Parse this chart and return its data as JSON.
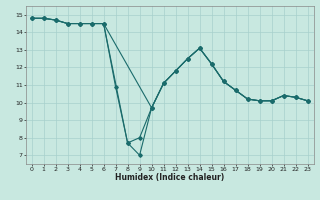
{
  "title": "",
  "xlabel": "Humidex (Indice chaleur)",
  "bg_color": "#c8e8e0",
  "line_color": "#1a6b6b",
  "grid_color": "#a8d0cc",
  "xlim": [
    -0.5,
    23.5
  ],
  "ylim": [
    6.5,
    15.5
  ],
  "xticks": [
    0,
    1,
    2,
    3,
    4,
    5,
    6,
    7,
    8,
    9,
    10,
    11,
    12,
    13,
    14,
    15,
    16,
    17,
    18,
    19,
    20,
    21,
    22,
    23
  ],
  "yticks": [
    7,
    8,
    9,
    10,
    11,
    12,
    13,
    14,
    15
  ],
  "line1": {
    "x": [
      0,
      1,
      2,
      3,
      4,
      5,
      6,
      7,
      8,
      9,
      10,
      11,
      12,
      13,
      14,
      15,
      16,
      17,
      18,
      19,
      20,
      21,
      22,
      23
    ],
    "y": [
      14.8,
      14.8,
      14.7,
      14.5,
      14.5,
      14.5,
      14.5,
      10.9,
      7.7,
      7.0,
      9.7,
      11.1,
      11.8,
      12.5,
      13.1,
      12.2,
      11.2,
      10.7,
      10.2,
      10.1,
      10.1,
      10.4,
      10.3,
      10.1
    ]
  },
  "line2": {
    "x": [
      0,
      1,
      2,
      3,
      4,
      5,
      6,
      8,
      9,
      10,
      11,
      12,
      13,
      14,
      15,
      16,
      17,
      18,
      19,
      20,
      21,
      22,
      23
    ],
    "y": [
      14.8,
      14.8,
      14.7,
      14.5,
      14.5,
      14.5,
      14.5,
      7.7,
      8.0,
      9.7,
      11.1,
      11.8,
      12.5,
      13.1,
      12.2,
      11.2,
      10.7,
      10.2,
      10.1,
      10.1,
      10.4,
      10.3,
      10.1
    ]
  },
  "line3": {
    "x": [
      0,
      1,
      2,
      3,
      4,
      5,
      6,
      10,
      11,
      12,
      13,
      14,
      15,
      16,
      17,
      18,
      19,
      20,
      21,
      22,
      23
    ],
    "y": [
      14.8,
      14.8,
      14.7,
      14.5,
      14.5,
      14.5,
      14.5,
      9.7,
      11.1,
      11.8,
      12.5,
      13.1,
      12.2,
      11.2,
      10.7,
      10.2,
      10.1,
      10.1,
      10.4,
      10.3,
      10.1
    ]
  }
}
